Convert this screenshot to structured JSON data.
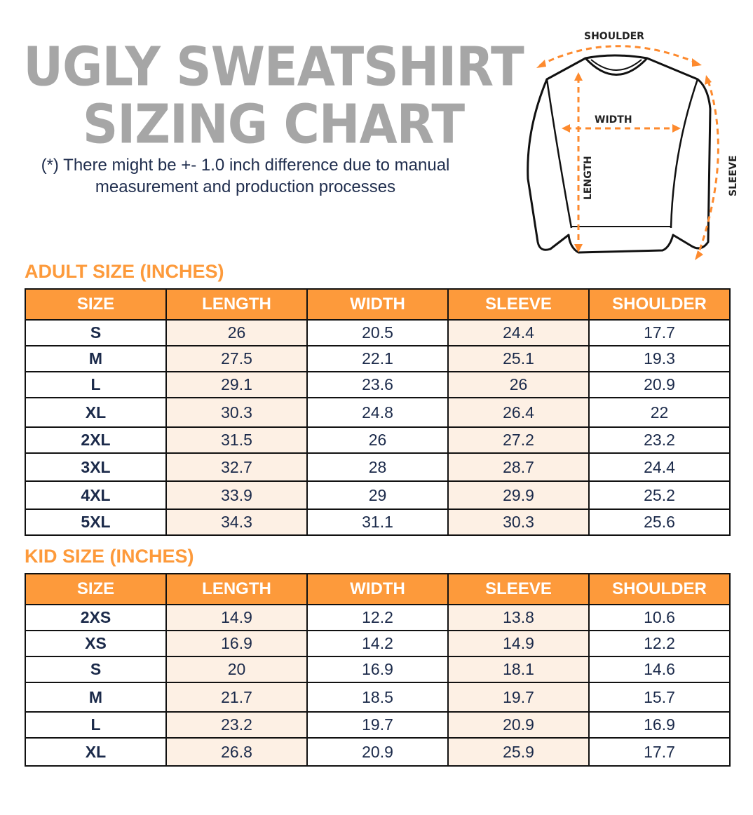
{
  "title_line1": "UGLY SWEATSHIRT",
  "title_line2": "SIZING CHART",
  "note": "(*) There might be +- 1.0 inch difference due to manual measurement and production processes",
  "diagram": {
    "shoulder": "SHOULDER",
    "width": "WIDTH",
    "length": "LENGTH",
    "sleeve": "SLEEVE",
    "accent": "#fd8a2e"
  },
  "colors": {
    "header": "#fd9a3b",
    "tint": "#fdf0e4",
    "text": "#1b2a4a",
    "title": "#a6a6a6"
  },
  "headers": [
    "SIZE",
    "LENGTH",
    "WIDTH",
    "SLEEVE",
    "SHOULDER"
  ],
  "adult": {
    "title": "ADULT SIZE (INCHES)",
    "rows": [
      [
        "S",
        "26",
        "20.5",
        "24.4",
        "17.7"
      ],
      [
        "M",
        "27.5",
        "22.1",
        "25.1",
        "19.3"
      ],
      [
        "L",
        "29.1",
        "23.6",
        "26",
        "20.9"
      ],
      [
        "XL",
        "30.3",
        "24.8",
        "26.4",
        "22"
      ],
      [
        "2XL",
        "31.5",
        "26",
        "27.2",
        "23.2"
      ],
      [
        "3XL",
        "32.7",
        "28",
        "28.7",
        "24.4"
      ],
      [
        "4XL",
        "33.9",
        "29",
        "29.9",
        "25.2"
      ],
      [
        "5XL",
        "34.3",
        "31.1",
        "30.3",
        "25.6"
      ]
    ]
  },
  "kid": {
    "title": "KID SIZE (INCHES)",
    "rows": [
      [
        "2XS",
        "14.9",
        "12.2",
        "13.8",
        "10.6"
      ],
      [
        "XS",
        "16.9",
        "14.2",
        "14.9",
        "12.2"
      ],
      [
        "S",
        "20",
        "16.9",
        "18.1",
        "14.6"
      ],
      [
        "M",
        "21.7",
        "18.5",
        "19.7",
        "15.7"
      ],
      [
        "L",
        "23.2",
        "19.7",
        "20.9",
        "16.9"
      ],
      [
        "XL",
        "26.8",
        "20.9",
        "25.9",
        "17.7"
      ]
    ]
  }
}
